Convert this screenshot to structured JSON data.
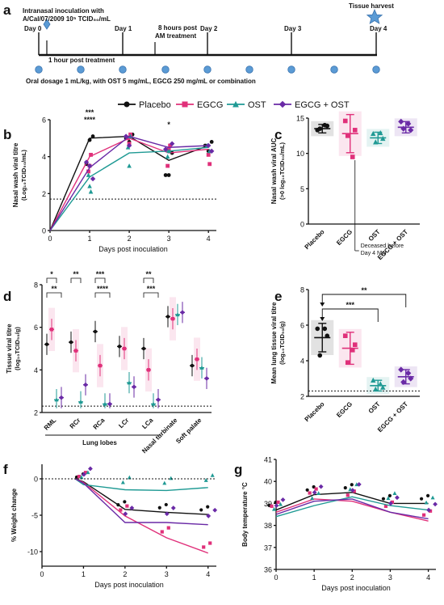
{
  "colors": {
    "Placebo": "#111111",
    "EGCG": "#e0307a",
    "OST": "#1f9a94",
    "EGCG + OST": "#6a2aa6",
    "timeline_dot": "#5b9bd5"
  },
  "legend": [
    "Placebo",
    "EGCG",
    "OST",
    "EGCG + OST"
  ],
  "panel_labels": {
    "a": "a",
    "b": "b",
    "c": "c",
    "d": "d",
    "e": "e",
    "f": "f",
    "g": "g"
  },
  "timeline": {
    "inoculation_line1": "Intranasal inoculation with",
    "inoculation_line2": "A/Cal/07/2009 10⁵ TCID₅₀/mL",
    "harvest": "Tissue harvest",
    "days": [
      "Day 0",
      "Day 1",
      "Day 2",
      "Day 3",
      "Day 4"
    ],
    "post_treatment": "1 hour post treatment",
    "am_line1": "8 hours post",
    "am_line2": "AM treatment",
    "dosage": "Oral dosage 1 mL/kg, with OST 5 mg/mL, EGCG 250 mg/mL or combination"
  },
  "chart_data": [
    {
      "id": "b",
      "type": "line",
      "xlabel": "Days post inoculation",
      "ylabel": "Nasal wash viral titre",
      "ylabel2": "(Log₁₀TCID₅₀/mL)",
      "x": [
        0,
        1,
        2,
        3,
        4
      ],
      "xlim": [
        0,
        4.2
      ],
      "ylim": [
        0,
        6
      ],
      "yticks": [
        0,
        2,
        4,
        6
      ],
      "threshold": 1.7,
      "annotations": [
        {
          "x": 1,
          "text": "***",
          "color": "#6a2aa6"
        },
        {
          "x": 1,
          "text": "****",
          "color": "#1f9a94"
        },
        {
          "x": 3,
          "text": "*",
          "color": "#111111"
        }
      ],
      "series": [
        {
          "name": "Placebo",
          "values": [
            0,
            5.0,
            5.1,
            3.8,
            4.6
          ],
          "points": [
            [
              1,
              5.1
            ],
            [
              1,
              4.9
            ],
            [
              1,
              3.6
            ],
            [
              2,
              5.2
            ],
            [
              2,
              4.8
            ],
            [
              2,
              5.0
            ],
            [
              3,
              4.2
            ],
            [
              3,
              3.0
            ],
            [
              3,
              3.0
            ],
            [
              4,
              4.8
            ],
            [
              4,
              4.3
            ],
            [
              4,
              4.6
            ]
          ]
        },
        {
          "name": "EGCG",
          "values": [
            0,
            4.0,
            5.0,
            4.2,
            4.4
          ],
          "points": [
            [
              1,
              4.1
            ],
            [
              1,
              3.5
            ],
            [
              1,
              3.2
            ],
            [
              2,
              5.2
            ],
            [
              2,
              4.7
            ],
            [
              2,
              5.0
            ],
            [
              3,
              4.6
            ],
            [
              3,
              4.4
            ],
            [
              3,
              3.5
            ],
            [
              4,
              3.6
            ],
            [
              4,
              4.1
            ]
          ]
        },
        {
          "name": "OST",
          "values": [
            0,
            2.9,
            4.2,
            4.3,
            4.5
          ],
          "points": [
            [
              1,
              3.0
            ],
            [
              1,
              2.4
            ],
            [
              1,
              2.1
            ],
            [
              2,
              4.5
            ],
            [
              2,
              3.5
            ],
            [
              2,
              5.1
            ],
            [
              3,
              4.0
            ],
            [
              3,
              4.3
            ],
            [
              4,
              4.3
            ],
            [
              4,
              4.6
            ]
          ]
        },
        {
          "name": "EGCG + OST",
          "values": [
            0,
            3.4,
            5.1,
            4.5,
            4.6
          ],
          "points": [
            [
              1,
              3.7
            ],
            [
              1,
              3.5
            ],
            [
              1,
              2.8
            ],
            [
              2,
              5.1
            ],
            [
              2,
              4.6
            ],
            [
              3,
              4.7
            ],
            [
              3,
              4.4
            ],
            [
              4,
              4.6
            ],
            [
              4,
              4.3
            ]
          ]
        }
      ]
    },
    {
      "id": "c",
      "type": "scatter",
      "ylabel": "Nasal wash viral AUC",
      "ylabel2": "(>0 log₁₀TCID₅₀/mL)",
      "categories": [
        "Placebo",
        "EGCG",
        "OST",
        "EGCG + OST"
      ],
      "ylim": [
        0,
        15
      ],
      "yticks": [
        0,
        5,
        10,
        15
      ],
      "note_line1": "Deceased before",
      "note_line2": "Day 4 NW",
      "groups": [
        {
          "name": "Placebo",
          "mean": 13.5,
          "sd": 0.6,
          "points": [
            13.3,
            13.9,
            13.5,
            14.0
          ]
        },
        {
          "name": "EGCG",
          "mean": 12.8,
          "sd": 2.7,
          "points": [
            14.6,
            13.3,
            12.5,
            9.5
          ]
        },
        {
          "name": "OST",
          "mean": 12.2,
          "sd": 0.8,
          "points": [
            12.8,
            12.1,
            11.6,
            12.9
          ]
        },
        {
          "name": "EGCG + OST",
          "mean": 13.7,
          "sd": 0.8,
          "points": [
            14.5,
            13.3,
            13.5,
            14.2
          ]
        }
      ]
    },
    {
      "id": "d",
      "type": "scatter",
      "ylabel": "Tissue viral titre",
      "ylabel2": "(log₁₀TCID₅₀/g)",
      "categories": [
        "RML",
        "RCr",
        "RCa",
        "LCr",
        "LCa",
        "Nasal turbinate",
        "Soft palate"
      ],
      "group_label": "Lung lobes",
      "ylim": [
        2,
        8
      ],
      "yticks": [
        2,
        4,
        6,
        8
      ],
      "threshold": 2.3,
      "series": [
        {
          "name": "Placebo",
          "values": [
            5.2,
            5.3,
            5.8,
            5.1,
            5.0,
            6.5,
            4.2
          ]
        },
        {
          "name": "EGCG",
          "values": [
            5.9,
            4.9,
            4.2,
            5.0,
            4.0,
            6.4,
            4.5
          ]
        },
        {
          "name": "OST",
          "values": [
            2.6,
            2.5,
            2.4,
            3.4,
            2.4,
            6.6,
            4.1
          ]
        },
        {
          "name": "EGCG + OST",
          "values": [
            2.7,
            3.3,
            2.4,
            3.2,
            2.6,
            6.7,
            3.6
          ]
        }
      ],
      "significance": [
        {
          "lobe": "RML",
          "stars": [
            "*",
            "**"
          ]
        },
        {
          "lobe": "RCr",
          "stars": [
            "**"
          ]
        },
        {
          "lobe": "RCa",
          "stars": [
            "***",
            "****"
          ]
        },
        {
          "lobe": "LCa",
          "stars": [
            "**",
            "***"
          ]
        }
      ]
    },
    {
      "id": "e",
      "type": "scatter",
      "ylabel": "Mean lung tissue viral titre",
      "ylabel2": "(log₁₀TCID₅₀/g)",
      "categories": [
        "Placebo",
        "EGCG",
        "OST",
        "EGCG + OST"
      ],
      "ylim": [
        2,
        8
      ],
      "yticks": [
        2,
        4,
        6,
        8
      ],
      "threshold": 2.3,
      "groups": [
        {
          "name": "Placebo",
          "mean": 5.3,
          "sd": 0.8,
          "points": [
            5.8,
            5.4,
            4.3,
            5.8
          ]
        },
        {
          "name": "EGCG",
          "mean": 4.7,
          "sd": 0.9,
          "points": [
            5.4,
            4.9,
            3.9,
            4.6
          ]
        },
        {
          "name": "OST",
          "mean": 2.6,
          "sd": 0.3,
          "points": [
            2.9,
            2.5,
            2.4,
            2.7
          ]
        },
        {
          "name": "EGCG + OST",
          "mean": 3.1,
          "sd": 0.4,
          "points": [
            3.5,
            3.0,
            2.8,
            3.3
          ]
        }
      ],
      "significance": [
        {
          "to": "EGCG + OST",
          "stars": "**"
        },
        {
          "to": "OST",
          "stars": "***"
        }
      ]
    },
    {
      "id": "f",
      "type": "line",
      "xlabel": "Days post inoculation",
      "ylabel": "% Weight change",
      "xlim": [
        0,
        4.2
      ],
      "ylim": [
        -12,
        2
      ],
      "yticks": [
        0,
        -5,
        -10
      ],
      "xticks": [
        0,
        1,
        2,
        3,
        4
      ],
      "series": [
        {
          "name": "Placebo",
          "x": [
            0.8,
            1,
            2,
            3,
            4
          ],
          "values": [
            0,
            -0.4,
            -4.2,
            -4.6,
            -4.9
          ]
        },
        {
          "name": "EGCG",
          "x": [
            0.8,
            1,
            2,
            3,
            4
          ],
          "values": [
            0,
            -0.5,
            -5.1,
            -8.1,
            -10.2
          ]
        },
        {
          "name": "OST",
          "x": [
            0.8,
            1,
            2,
            3,
            4
          ],
          "values": [
            0,
            -0.8,
            -1.5,
            -1.6,
            -1.2
          ]
        },
        {
          "name": "EGCG + OST",
          "x": [
            0.8,
            1,
            2,
            3,
            4
          ],
          "values": [
            0,
            -0.6,
            -6.0,
            -6.0,
            -6.3
          ]
        }
      ]
    },
    {
      "id": "g",
      "type": "line",
      "xlabel": "Days post inoculation",
      "ylabel": "Body temperature °C",
      "xlim": [
        0,
        4.2
      ],
      "ylim": [
        36,
        41
      ],
      "yticks": [
        36,
        37,
        38,
        39,
        40,
        41
      ],
      "xticks": [
        0,
        1,
        2,
        3,
        4
      ],
      "series": [
        {
          "name": "Placebo",
          "x": [
            0,
            1,
            2,
            3,
            4
          ],
          "values": [
            38.7,
            39.4,
            39.5,
            39.0,
            39.0
          ]
        },
        {
          "name": "EGCG",
          "x": [
            0,
            1,
            2,
            3,
            4
          ],
          "values": [
            38.6,
            39.2,
            39.1,
            38.6,
            38.2
          ]
        },
        {
          "name": "OST",
          "x": [
            0,
            1,
            2,
            3,
            4
          ],
          "values": [
            38.4,
            38.9,
            39.3,
            38.9,
            38.7
          ]
        },
        {
          "name": "EGCG + OST",
          "x": [
            0,
            1,
            2,
            3,
            4
          ],
          "values": [
            38.5,
            39.1,
            39.2,
            38.6,
            38.3
          ]
        }
      ]
    }
  ]
}
